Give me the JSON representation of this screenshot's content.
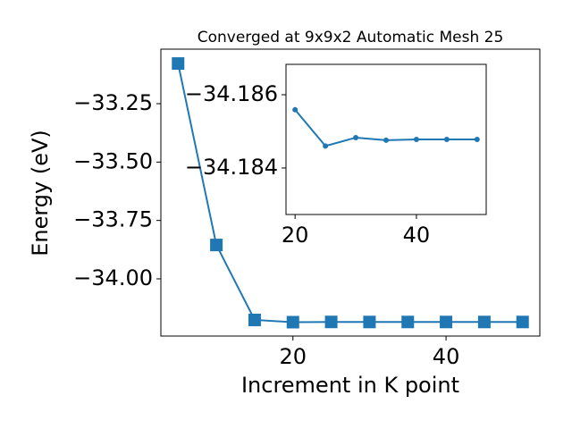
{
  "chart_data": [
    {
      "type": "line",
      "title": "Converged at 9x9x2 Automatic Mesh 25",
      "xlabel": "Increment in K point",
      "ylabel": "Energy (eV)",
      "x": [
        5,
        10,
        15,
        20,
        25,
        30,
        35,
        40,
        45,
        50
      ],
      "series": [
        {
          "color": "#1f77b4",
          "marker": "square",
          "values": [
            -33.078,
            -33.855,
            -34.176,
            -34.18559,
            -34.1846,
            -34.18483,
            -34.18476,
            -34.18478,
            -34.18478,
            -34.18478
          ]
        }
      ],
      "xlim": [
        2.75,
        52.25
      ],
      "xticks": [
        20,
        40
      ],
      "ylim": [
        -34.245,
        -33.0165
      ],
      "yticks": [
        {
          "value": -34.0,
          "label": "−34.00"
        },
        {
          "value": -33.75,
          "label": "−33.75"
        },
        {
          "value": -33.5,
          "label": "−33.50"
        },
        {
          "value": -33.25,
          "label": "−33.25"
        }
      ]
    },
    {
      "type": "line",
      "x": [
        20,
        25,
        30,
        35,
        40,
        45,
        50
      ],
      "series": [
        {
          "color": "#1f77b4",
          "marker": "circle",
          "values": [
            -34.18559,
            -34.1846,
            -34.18483,
            -34.18476,
            -34.18478,
            -34.18478,
            -34.18478
          ]
        }
      ],
      "xlim": [
        18.5,
        51.5
      ],
      "xticks": [
        20,
        40
      ],
      "ylim": [
        -34.18273,
        -34.18683
      ],
      "yticks": [
        {
          "value": -34.186,
          "label": "−34.186"
        },
        {
          "value": -34.184,
          "label": "−34.184"
        }
      ]
    }
  ]
}
